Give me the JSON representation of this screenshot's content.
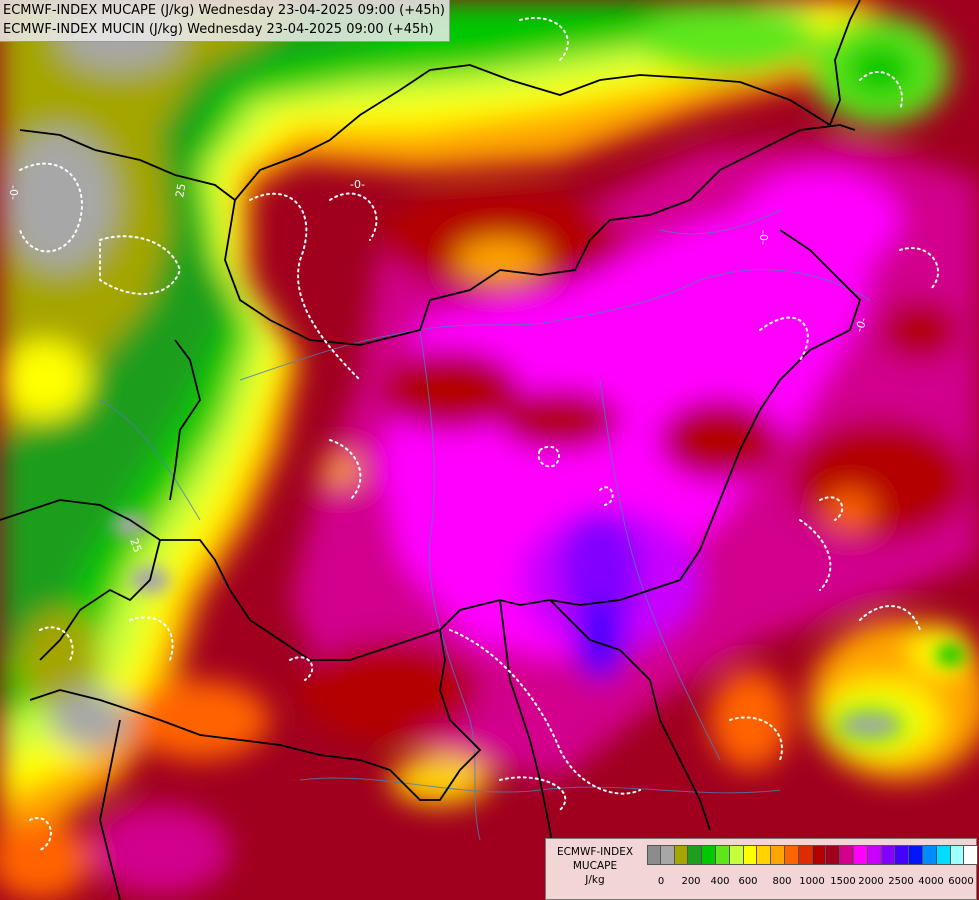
{
  "titles": {
    "line1": "ECMWF-INDEX MUCAPE (J/kg) Wednesday 23-04-2025 09:00 (+45h)",
    "line2": "ECMWF-INDEX MUCIN (J/kg) Wednesday 23-04-2025 09:00 (+45h)"
  },
  "legend": {
    "line1": "ECMWF-INDEX",
    "line2": "MUCAPE",
    "line3": "J/kg",
    "colors": [
      "#8c8c8c",
      "#a7a7a7",
      "#a5a500",
      "#1e9e1e",
      "#00c800",
      "#5ee61a",
      "#c8ff3c",
      "#ffff00",
      "#ffd200",
      "#ffa500",
      "#ff6400",
      "#e02a00",
      "#b40000",
      "#a0001e",
      "#d2008c",
      "#ff00ff",
      "#c800ff",
      "#8200ff",
      "#4600ff",
      "#0014ff",
      "#008cff",
      "#00dcff",
      "#a0ffff",
      "#ffffff"
    ],
    "ticks": [
      "0",
      "200",
      "400",
      "600",
      "800",
      "1000",
      "1500",
      "2000",
      "2500",
      "4000",
      "6000"
    ]
  },
  "contour_labels": [
    "25",
    "-0-",
    "-0-",
    "-0-",
    "-0-",
    "25"
  ]
}
